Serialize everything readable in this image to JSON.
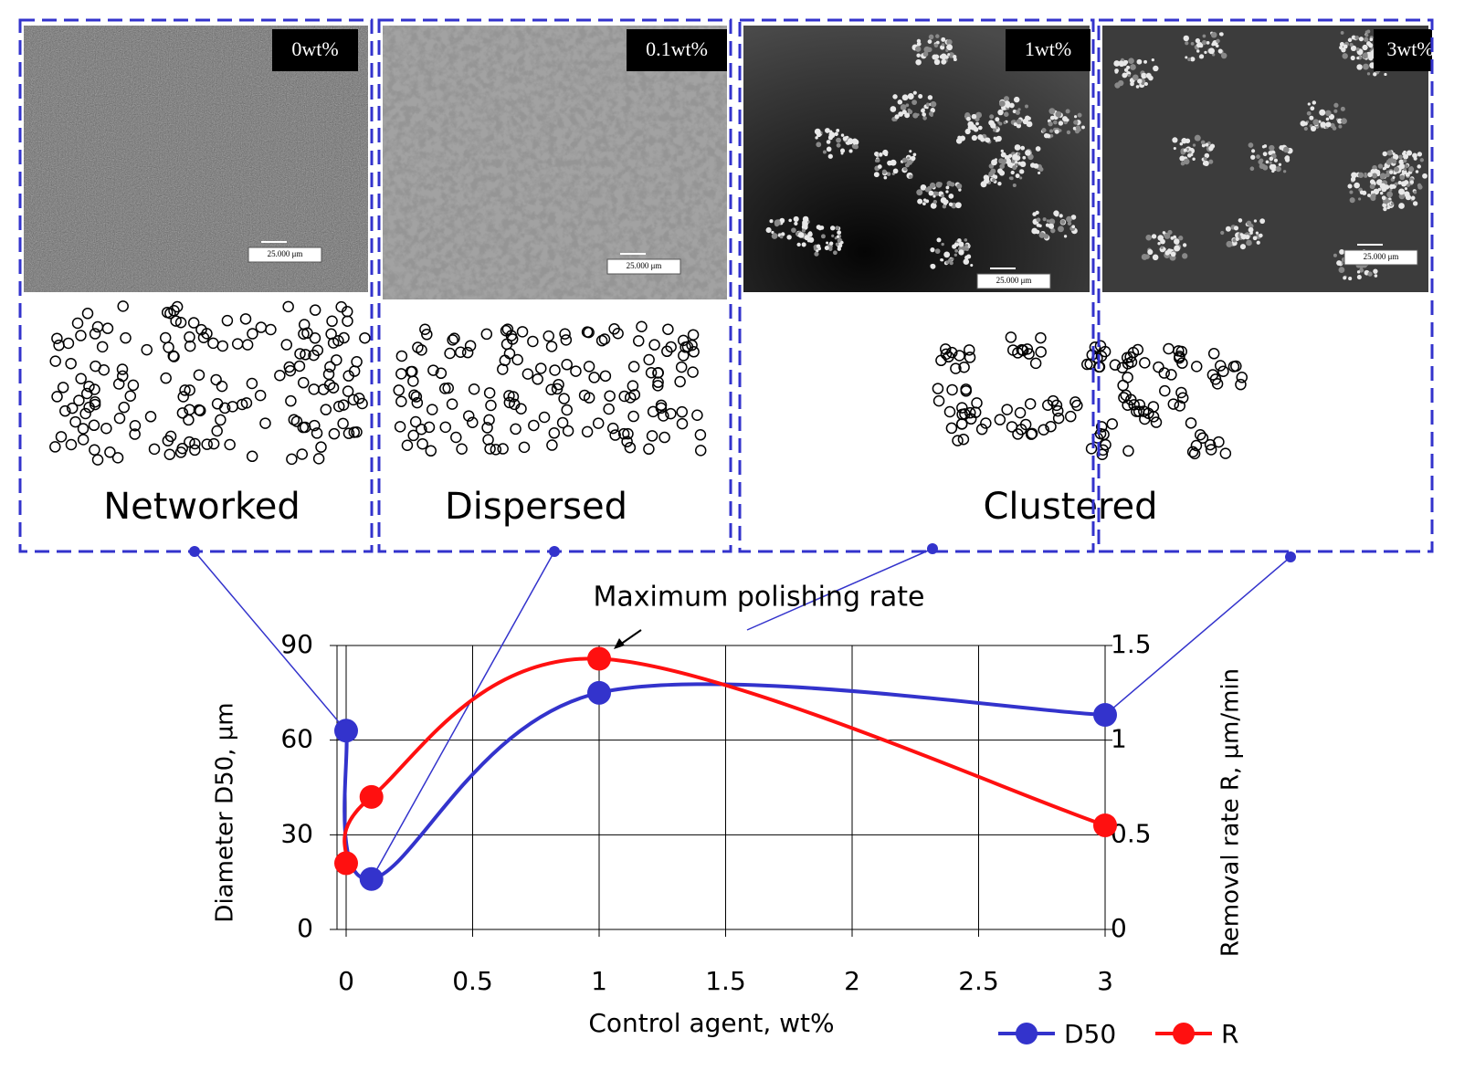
{
  "panels": [
    {
      "label": "0wt%"
    },
    {
      "label": "0.1wt%"
    },
    {
      "label": "1wt%"
    },
    {
      "label": "3wt%"
    }
  ],
  "morphology": [
    "Networked",
    "Dispersed",
    "Clustered"
  ],
  "scale_bar": "25.000 μm",
  "chart_data": {
    "type": "line",
    "annotation": "Maximum polishing rate",
    "x": [
      0,
      0.1,
      1,
      3
    ],
    "xlim": [
      0,
      3
    ],
    "xticks": [
      0,
      0.5,
      1,
      1.5,
      2,
      2.5,
      3
    ],
    "ylim": [
      0,
      90
    ],
    "yticks": [
      0,
      30,
      60,
      90
    ],
    "y2lim": [
      0,
      1.5
    ],
    "y2ticks": [
      0,
      0.5,
      1,
      1.5
    ],
    "x_label": "Control agent, wt%",
    "y_label": "Diameter D50, µm",
    "y2_label": "Removal rate R, µm/min",
    "grid": true,
    "legend": "bottom-right",
    "series": [
      {
        "name": "D50",
        "color": "#3333cc",
        "values": [
          63,
          16,
          75,
          68
        ]
      },
      {
        "name": "R",
        "color": "#ff1010",
        "values": [
          0.35,
          0.7,
          1.43,
          0.55
        ],
        "axis": "y2"
      }
    ]
  }
}
